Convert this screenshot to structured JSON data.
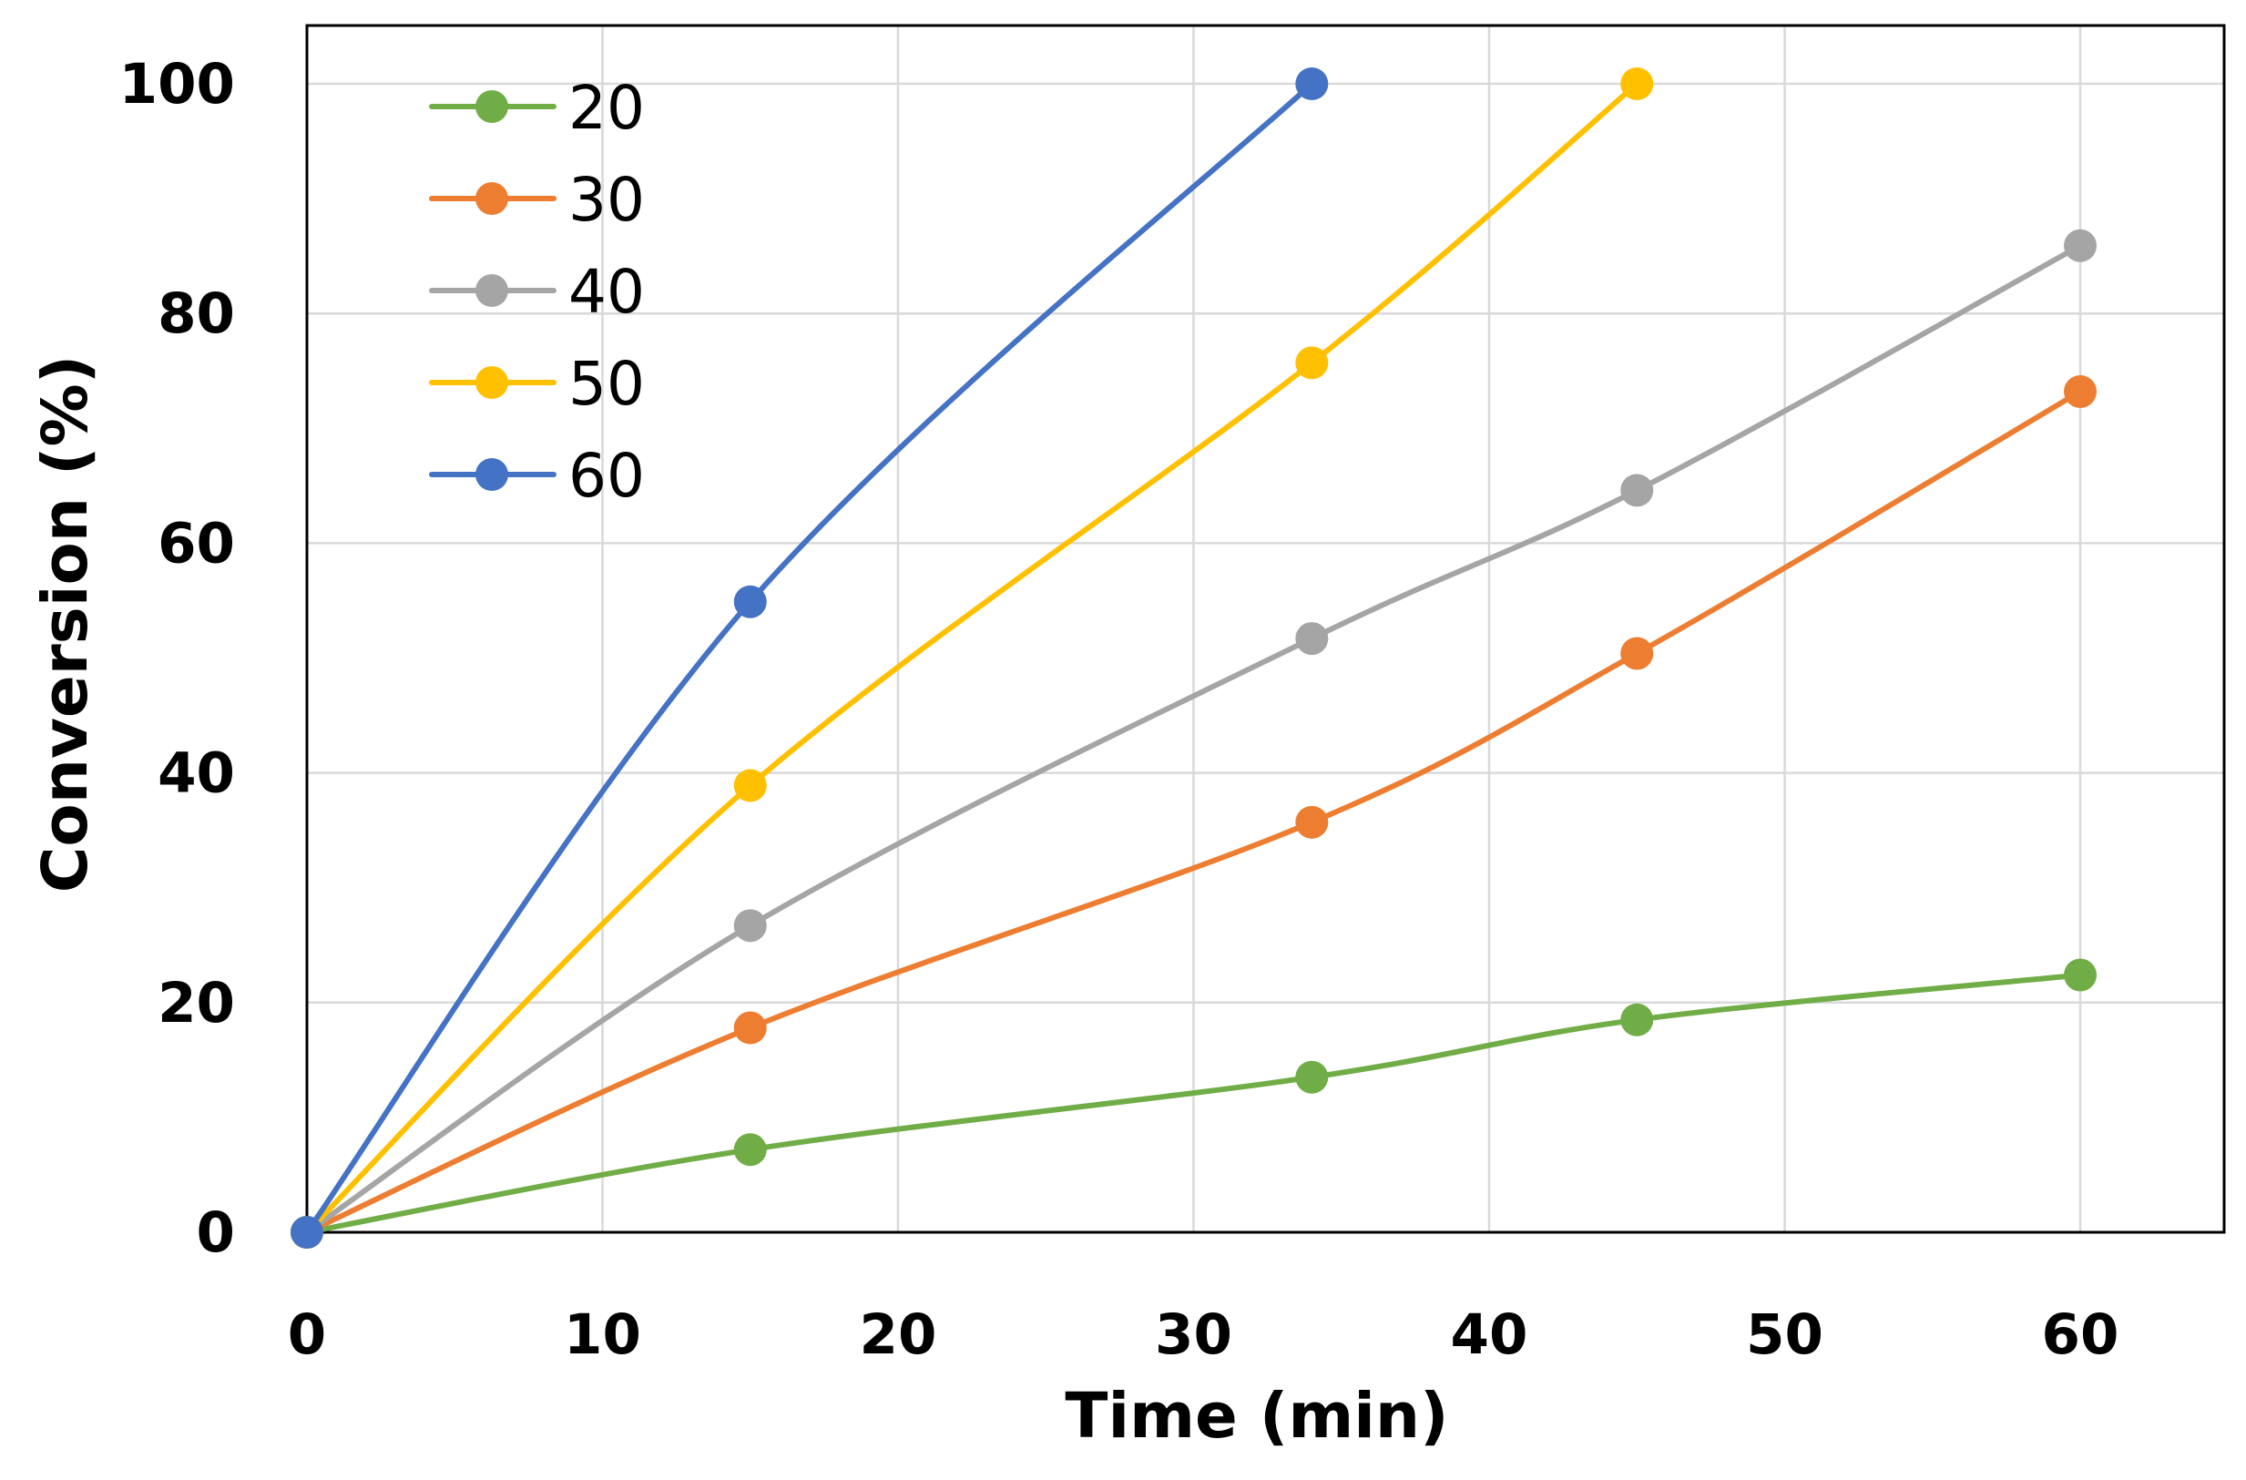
{
  "chart_data": {
    "type": "line",
    "title": "",
    "xlabel": "Time (min)",
    "ylabel": "Conversion (%)",
    "xlim": [
      0,
      65
    ],
    "ylim": [
      0,
      105
    ],
    "xticks": [
      0,
      10,
      20,
      30,
      40,
      50,
      60
    ],
    "yticks": [
      0,
      20,
      40,
      60,
      80,
      100
    ],
    "grid": true,
    "legend_position": "top-left",
    "series": [
      {
        "name": "20",
        "color": "#70ad47",
        "x": [
          0,
          15,
          34,
          45,
          60
        ],
        "y": [
          0,
          7.2,
          13.5,
          18.5,
          22.4
        ]
      },
      {
        "name": "30",
        "color": "#ed7d31",
        "x": [
          0,
          15,
          34,
          45,
          60
        ],
        "y": [
          0,
          17.8,
          35.7,
          50.4,
          73.2
        ]
      },
      {
        "name": "40",
        "color": "#a5a5a5",
        "x": [
          0,
          15,
          34,
          45,
          60
        ],
        "y": [
          0,
          26.7,
          51.7,
          64.6,
          85.9
        ]
      },
      {
        "name": "50",
        "color": "#ffc000",
        "x": [
          0,
          15,
          34,
          45
        ],
        "y": [
          0,
          38.9,
          75.7,
          100
        ]
      },
      {
        "name": "60",
        "color": "#4472c4",
        "x": [
          0,
          15,
          34
        ],
        "y": [
          0,
          54.9,
          100
        ]
      }
    ]
  }
}
